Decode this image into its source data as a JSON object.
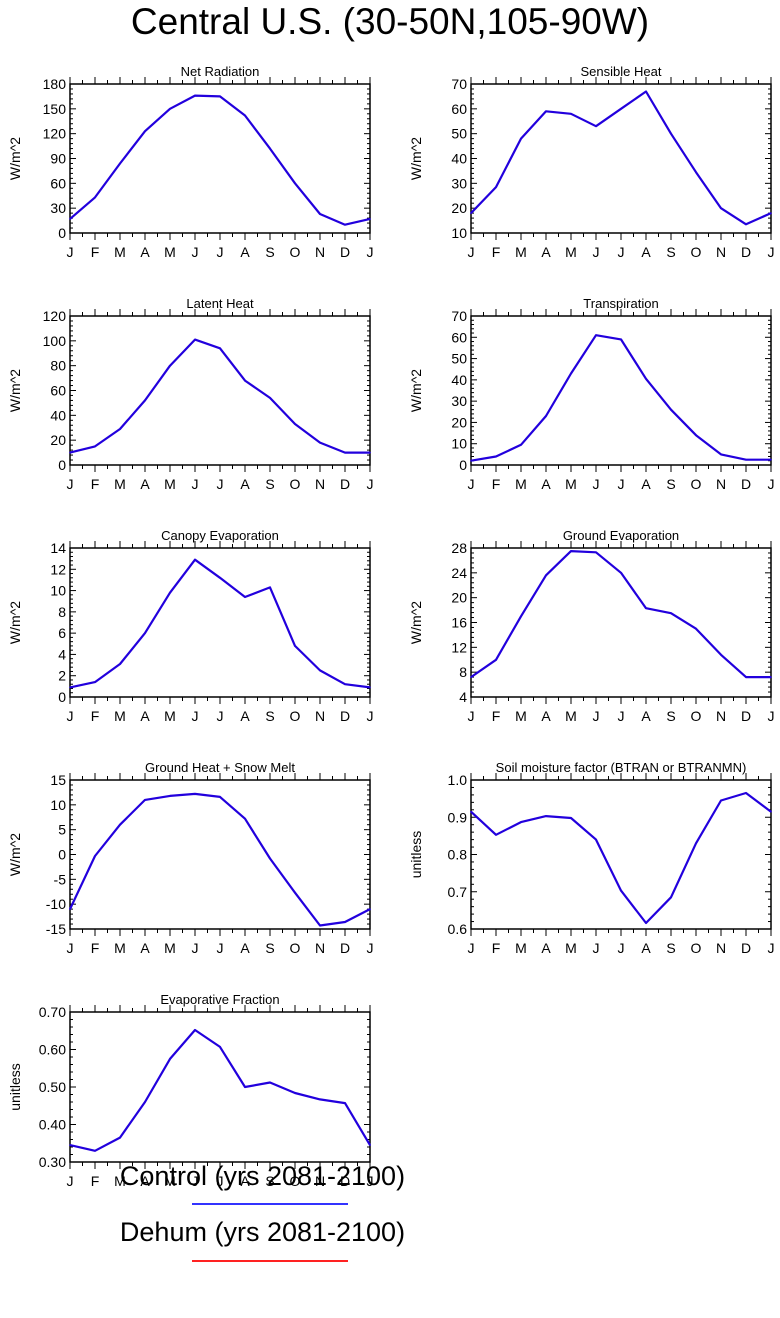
{
  "figure_title": "Central U.S. (30-50N,105-90W)",
  "legend": [
    {
      "label": "Control (yrs 2081-2100)",
      "color": "#3333ff"
    },
    {
      "label": "Dehum (yrs 2081-2100)",
      "color": "#ff2222"
    }
  ],
  "colors": {
    "series": "#2200dd",
    "axis": "#000000"
  },
  "chart_data": [
    {
      "type": "line",
      "title": "Net Radiation",
      "ylabel": "W/m^2",
      "categories": [
        "J",
        "F",
        "M",
        "A",
        "M",
        "J",
        "J",
        "A",
        "S",
        "O",
        "N",
        "D",
        "J"
      ],
      "ylim": [
        0,
        180
      ],
      "yticks": [
        "0",
        "30",
        "60",
        "90",
        "120",
        "150",
        "180"
      ],
      "series": [
        {
          "name": "Control (yrs 2081-2100)",
          "values": [
            17,
            43,
            84,
            123,
            150,
            166,
            165,
            142,
            102,
            60,
            23,
            10,
            17
          ]
        }
      ]
    },
    {
      "type": "line",
      "title": "Sensible Heat",
      "ylabel": "W/m^2",
      "categories": [
        "J",
        "F",
        "M",
        "A",
        "M",
        "J",
        "J",
        "A",
        "S",
        "O",
        "N",
        "D",
        "J"
      ],
      "ylim": [
        10,
        70
      ],
      "yticks": [
        "10",
        "20",
        "30",
        "40",
        "50",
        "60",
        "70"
      ],
      "series": [
        {
          "name": "Control (yrs 2081-2100)",
          "values": [
            18,
            28.5,
            48,
            59,
            58,
            53,
            60,
            67,
            50,
            34.5,
            20,
            13.5,
            18
          ]
        }
      ]
    },
    {
      "type": "line",
      "title": "Latent Heat",
      "ylabel": "W/m^2",
      "categories": [
        "J",
        "F",
        "M",
        "A",
        "M",
        "J",
        "J",
        "A",
        "S",
        "O",
        "N",
        "D",
        "J"
      ],
      "ylim": [
        0,
        120
      ],
      "yticks": [
        "0",
        "20",
        "40",
        "60",
        "80",
        "100",
        "120"
      ],
      "series": [
        {
          "name": "Control (yrs 2081-2100)",
          "values": [
            10,
            15,
            29,
            52,
            80,
            101,
            94,
            68,
            54,
            33,
            18,
            10,
            10
          ]
        }
      ]
    },
    {
      "type": "line",
      "title": "Transpiration",
      "ylabel": "W/m^2",
      "categories": [
        "J",
        "F",
        "M",
        "A",
        "M",
        "J",
        "J",
        "A",
        "S",
        "O",
        "N",
        "D",
        "J"
      ],
      "ylim": [
        0,
        70
      ],
      "yticks": [
        "0",
        "10",
        "20",
        "30",
        "40",
        "50",
        "60",
        "70"
      ],
      "series": [
        {
          "name": "Control (yrs 2081-2100)",
          "values": [
            2,
            4,
            9.5,
            23,
            43,
            61,
            59,
            40.5,
            26,
            14,
            5,
            2.5,
            2.5
          ]
        }
      ]
    },
    {
      "type": "line",
      "title": "Canopy Evaporation",
      "ylabel": "W/m^2",
      "categories": [
        "J",
        "F",
        "M",
        "A",
        "M",
        "J",
        "J",
        "A",
        "S",
        "O",
        "N",
        "D",
        "J"
      ],
      "ylim": [
        0,
        14
      ],
      "yticks": [
        "0",
        "2",
        "4",
        "6",
        "8",
        "10",
        "12",
        "14"
      ],
      "series": [
        {
          "name": "Control (yrs 2081-2100)",
          "values": [
            0.9,
            1.4,
            3.1,
            6,
            9.8,
            12.9,
            11.2,
            9.4,
            10.3,
            4.8,
            2.5,
            1.2,
            0.9
          ]
        }
      ]
    },
    {
      "type": "line",
      "title": "Ground Evaporation",
      "ylabel": "W/m^2",
      "categories": [
        "J",
        "F",
        "M",
        "A",
        "M",
        "J",
        "J",
        "A",
        "S",
        "O",
        "N",
        "D",
        "J"
      ],
      "ylim": [
        4,
        28
      ],
      "yticks": [
        "4",
        "8",
        "12",
        "16",
        "20",
        "24",
        "28"
      ],
      "series": [
        {
          "name": "Control (yrs 2081-2100)",
          "values": [
            7.2,
            10,
            17,
            23.6,
            27.5,
            27.3,
            24,
            18.3,
            17.5,
            15,
            10.8,
            7.2,
            7.2
          ]
        }
      ]
    },
    {
      "type": "line",
      "title": "Ground Heat + Snow Melt",
      "ylabel": "W/m^2",
      "categories": [
        "J",
        "F",
        "M",
        "A",
        "M",
        "J",
        "J",
        "A",
        "S",
        "O",
        "N",
        "D",
        "J"
      ],
      "ylim": [
        -15,
        15
      ],
      "yticks": [
        "-15",
        "-10",
        "-5",
        "0",
        "5",
        "10",
        "15"
      ],
      "series": [
        {
          "name": "Control (yrs 2081-2100)",
          "values": [
            -11,
            -0.3,
            6,
            11,
            11.8,
            12.2,
            11.6,
            7.2,
            -0.8,
            -7.7,
            -14.3,
            -13.6,
            -11
          ]
        }
      ]
    },
    {
      "type": "line",
      "title": "Soil moisture factor (BTRAN or BTRANMN)",
      "ylabel": "unitless",
      "categories": [
        "J",
        "F",
        "M",
        "A",
        "M",
        "J",
        "J",
        "A",
        "S",
        "O",
        "N",
        "D",
        "J"
      ],
      "ylim": [
        0.6,
        1.0
      ],
      "yticks": [
        "0.6",
        "0.7",
        "0.8",
        "0.9",
        "1.0"
      ],
      "series": [
        {
          "name": "Control (yrs 2081-2100)",
          "values": [
            0.915,
            0.853,
            0.887,
            0.903,
            0.898,
            0.84,
            0.703,
            0.616,
            0.685,
            0.83,
            0.945,
            0.965,
            0.915
          ]
        }
      ]
    },
    {
      "type": "line",
      "title": "Evaporative Fraction",
      "ylabel": "unitless",
      "categories": [
        "J",
        "F",
        "M",
        "A",
        "M",
        "J",
        "J",
        "A",
        "S",
        "O",
        "N",
        "D",
        "J"
      ],
      "ylim": [
        0.3,
        0.7
      ],
      "yticks": [
        "0.30",
        "0.40",
        "0.50",
        "0.60",
        "0.70"
      ],
      "series": [
        {
          "name": "Control (yrs 2081-2100)",
          "values": [
            0.345,
            0.33,
            0.365,
            0.46,
            0.575,
            0.652,
            0.607,
            0.5,
            0.512,
            0.484,
            0.467,
            0.457,
            0.345
          ]
        }
      ]
    }
  ]
}
